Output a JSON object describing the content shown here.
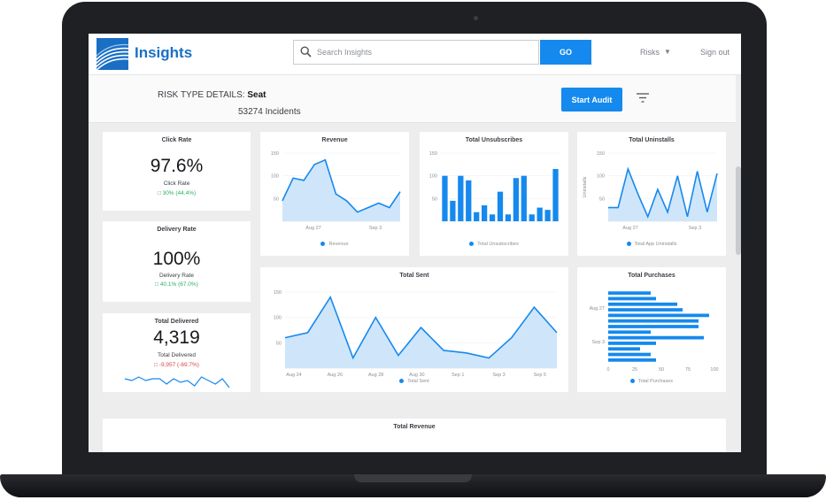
{
  "header": {
    "app_title": "Insights",
    "search_placeholder": "Search Insights",
    "go_label": "GO",
    "risks_label": "Risks",
    "signout_label": "Sign out"
  },
  "subheader": {
    "risk_type_label": "RISK TYPE DETAILS:",
    "risk_type_value": "Seat",
    "incidents": "53274 Incidents",
    "start_audit_label": "Start Audit"
  },
  "kpis": {
    "click_rate": {
      "title": "Click Rate",
      "value": "97.6%",
      "sub": "Click Rate",
      "change": "30% (44.4%)"
    },
    "delivery_rate": {
      "title": "Delivery Rate",
      "value": "100%",
      "sub": "Delivery Rate",
      "change": "40.1% (67.0%)"
    },
    "total_delivered": {
      "title": "Total Delivered",
      "value": "4,319",
      "sub": "Total Delivered",
      "change": "-9,957 (-69.7%)"
    }
  },
  "colors": {
    "accent": "#1589ee",
    "area_fill": "#cfe6fa",
    "positive": "#2bae66",
    "negative": "#d64545"
  },
  "chart_data": [
    {
      "type": "area",
      "title": "Revenue",
      "x_ticks": [
        "Aug 27",
        "Sep 3"
      ],
      "y_ticks": [
        50,
        100,
        150
      ],
      "ylim": [
        0,
        150
      ],
      "series": [
        {
          "name": "Revenue",
          "values": [
            45,
            95,
            90,
            125,
            135,
            60,
            45,
            20,
            30,
            40,
            30,
            65
          ]
        }
      ]
    },
    {
      "type": "bar",
      "title": "Total Unsubscribes",
      "y_ticks": [
        50,
        100,
        150
      ],
      "ylim": [
        0,
        150
      ],
      "series": [
        {
          "name": "Total Unsubscribes",
          "values": [
            100,
            45,
            100,
            90,
            20,
            35,
            15,
            65,
            15,
            95,
            100,
            15,
            30,
            25,
            115
          ]
        }
      ]
    },
    {
      "type": "area",
      "title": "Total Uninstalls",
      "ylabel": "Uninstalls",
      "x_ticks": [
        "Aug 27",
        "Sep 3"
      ],
      "y_ticks": [
        50,
        100,
        150
      ],
      "ylim": [
        0,
        150
      ],
      "series": [
        {
          "name": "Total App Uninstalls",
          "values": [
            30,
            30,
            115,
            60,
            10,
            70,
            20,
            100,
            10,
            110,
            20,
            105
          ]
        }
      ]
    },
    {
      "type": "area",
      "title": "Total Sent",
      "x_ticks": [
        "Aug 24",
        "Aug 26",
        "Aug 28",
        "Aug 30",
        "Sep 1",
        "Sep 3",
        "Sep 5"
      ],
      "y_ticks": [
        50,
        100,
        150
      ],
      "ylim": [
        0,
        150
      ],
      "series": [
        {
          "name": "Total Sent",
          "values": [
            60,
            70,
            140,
            20,
            100,
            25,
            80,
            35,
            30,
            20,
            60,
            120,
            70
          ]
        }
      ]
    },
    {
      "type": "bar",
      "orientation": "horizontal",
      "title": "Total Purchases",
      "y_ticks": [
        "Aug 27",
        "Sep 3"
      ],
      "x_ticks": [
        0,
        25,
        50,
        75,
        100
      ],
      "xlim": [
        0,
        100
      ],
      "series": [
        {
          "name": "Total Purchases",
          "values": [
            40,
            45,
            65,
            70,
            95,
            85,
            85,
            40,
            90,
            45,
            30,
            40,
            45
          ]
        }
      ]
    },
    {
      "type": "line",
      "title": "Total Delivered",
      "series": [
        {
          "name": "Total Delivered",
          "values": [
            6,
            5,
            7,
            5,
            6,
            6,
            3,
            6,
            4,
            5,
            2,
            7,
            5,
            3,
            6,
            1
          ]
        }
      ]
    }
  ],
  "bottom_panel": {
    "title": "Total Revenue"
  }
}
